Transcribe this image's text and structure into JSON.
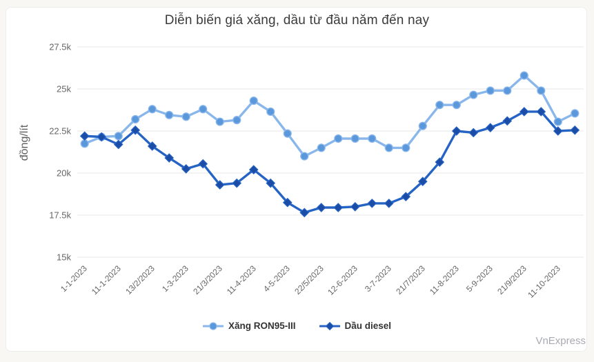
{
  "page": {
    "watermark": "VnExpress",
    "background": "#f9f7f3",
    "card_background": "#ffffff"
  },
  "chart_data": {
    "type": "line",
    "title": "Diễn biến giá xăng, dầu từ đầu năm đến nay",
    "ylabel": "đồng/lít",
    "ylim": [
      15000,
      27500
    ],
    "ytick_interval": 2500,
    "ytick_labels": [
      "15k",
      "17.5k",
      "20k",
      "22.5k",
      "25k",
      "27.5k"
    ],
    "x_labels": [
      "1-1-2023",
      "11-1-2023",
      "13/2/2023",
      "1-3-2023",
      "21/3/2023",
      "11-4-2023",
      "4-5-2023",
      "22/5/2023",
      "12-6-2023",
      "3-7-2023",
      "21/7/2023",
      "11-8-2023",
      "5-9-2023",
      "21/9/2023",
      "11-10-2023"
    ],
    "x_label_step": 2,
    "n_points": 30,
    "grid": true,
    "grid_color": "#e7e7e7",
    "legend_position": "bottom",
    "series": [
      {
        "name": "Xăng RON95-III",
        "marker": "circle",
        "color": "#8ab7eb",
        "marker_color": "#5a98db",
        "values": [
          21750,
          22150,
          22200,
          23200,
          23800,
          23450,
          23350,
          23800,
          23050,
          23150,
          24300,
          23650,
          22350,
          21000,
          21500,
          22050,
          22050,
          22050,
          21500,
          21500,
          22800,
          24050,
          24050,
          24650,
          24900,
          24900,
          25800,
          24900,
          23050,
          23550
        ]
      },
      {
        "name": "Dầu diesel",
        "marker": "diamond",
        "color": "#2563c4",
        "marker_color": "#1b4da7",
        "values": [
          22200,
          22150,
          21700,
          22550,
          21600,
          20900,
          20250,
          20550,
          19300,
          19400,
          20200,
          19400,
          18250,
          17650,
          17950,
          17950,
          18000,
          18200,
          18200,
          18600,
          19500,
          20650,
          22500,
          22400,
          22700,
          23100,
          23650,
          23650,
          22500,
          22550
        ]
      }
    ]
  }
}
